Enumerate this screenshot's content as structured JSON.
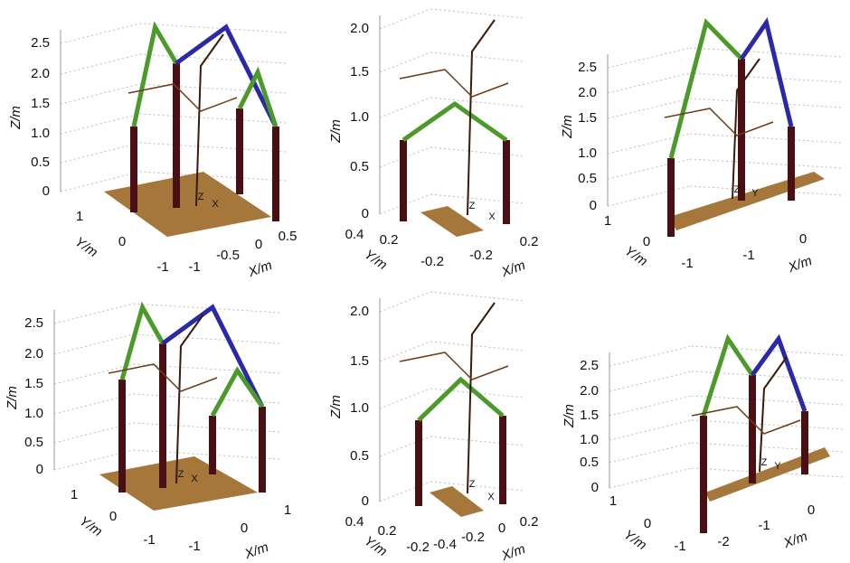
{
  "panels": [
    {
      "zlabel": "Z/m",
      "ylabel": "Y/m",
      "xlabel": "X/m",
      "zticks": [
        "2.5",
        "2.0",
        "1.5",
        "1.0",
        "0.5",
        "0"
      ],
      "yticks": [
        "1",
        "0",
        "-1"
      ],
      "xticks": [
        "-1",
        "-0.5",
        "0",
        "0.5"
      ],
      "origin": [
        "Z",
        "X"
      ]
    },
    {
      "zlabel": "Z/m",
      "ylabel": "Y/m",
      "xlabel": "X/m",
      "zticks": [
        "2.0",
        "1.5",
        "1.0",
        "0.5",
        "0"
      ],
      "yticks": [
        "0.4",
        "0.2",
        "-0.2"
      ],
      "xticks": [
        "-0.2",
        "0.2"
      ],
      "origin": [
        "Z",
        "X"
      ]
    },
    {
      "zlabel": "Z/m",
      "ylabel": "Y/m",
      "xlabel": "X/m",
      "zticks": [
        "2.5",
        "2.0",
        "1.5",
        "1.0",
        "0.5",
        "0"
      ],
      "yticks": [
        "1",
        "0",
        "-1"
      ],
      "xticks": [
        "-1",
        "0"
      ],
      "origin": [
        "Z",
        "Y"
      ]
    },
    {
      "zlabel": "Z/m",
      "ylabel": "Y/m",
      "xlabel": "X/m",
      "zticks": [
        "2.5",
        "2.0",
        "1.5",
        "1.0",
        "0.5",
        "0"
      ],
      "yticks": [
        "1",
        "0",
        "-1"
      ],
      "xticks": [
        "-1",
        "0",
        "1"
      ],
      "origin": [
        "Z",
        "X"
      ]
    },
    {
      "zlabel": "Z/m",
      "ylabel": "Y/m",
      "xlabel": "X/m",
      "zticks": [
        "2.0",
        "1.5",
        "1.0",
        "0.5",
        "0"
      ],
      "yticks": [
        "0.4",
        "0.2",
        "-0.2"
      ],
      "xticks": [
        "-0.4",
        "-0.2",
        "0",
        "0.2"
      ],
      "origin": [
        "Z",
        "X"
      ]
    },
    {
      "zlabel": "Z/m",
      "ylabel": "Y/m",
      "xlabel": "X/m",
      "zticks": [
        "2.5",
        "2.0",
        "1.5",
        "1.0",
        "0.5",
        "0"
      ],
      "yticks": [
        "1",
        "0",
        "-1"
      ],
      "xticks": [
        "-2",
        "-1",
        "0"
      ],
      "origin": [
        "Z",
        "Y"
      ]
    }
  ]
}
